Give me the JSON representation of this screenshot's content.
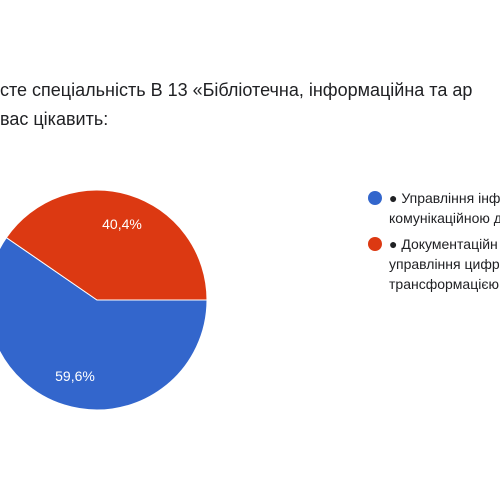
{
  "question": {
    "line1": "сте спеціальність В 13 «Бібліотечна, інформаційна та ар",
    "line2": "вас цікавить:"
  },
  "colors": {
    "series_blue": "#3366cc",
    "series_red": "#dc3912"
  },
  "chart_data": {
    "type": "pie",
    "categories": [
      "● Управління інф комунікаційною д",
      "● Документаційн управління цифр трансформацією"
    ],
    "values": [
      59.6,
      40.4
    ],
    "labels": [
      "59,6%",
      "40,4%"
    ],
    "colors": [
      "#3366cc",
      "#dc3912"
    ],
    "legend_position": "right"
  },
  "legend": {
    "items": [
      {
        "line1": "● Управління інф",
        "line2": "комунікаційною д",
        "line3": ""
      },
      {
        "line1": "● Документаційн",
        "line2": "управління цифр",
        "line3": "трансформацією"
      }
    ]
  }
}
